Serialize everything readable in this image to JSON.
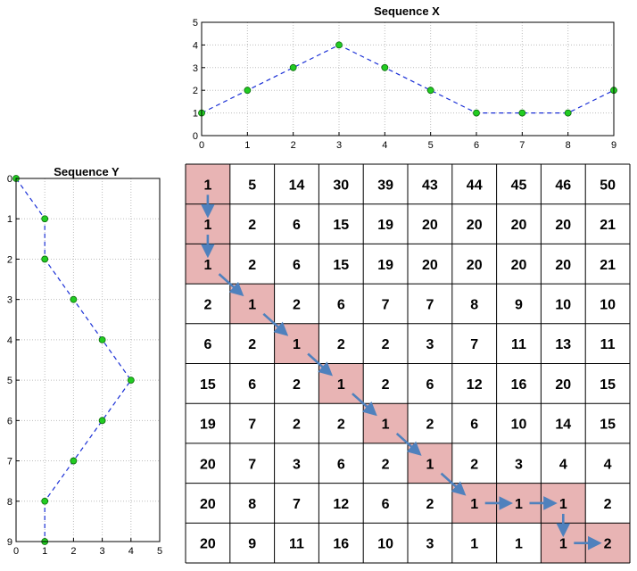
{
  "sequence_x": {
    "title": "Sequence X",
    "x_ticks": [
      "0",
      "1",
      "2",
      "3",
      "4",
      "5",
      "6",
      "7",
      "8",
      "9"
    ],
    "y_ticks": [
      "0",
      "1",
      "2",
      "3",
      "4",
      "5"
    ]
  },
  "sequence_y": {
    "title": "Sequence Y",
    "x_ticks": [
      "0",
      "1",
      "2",
      "3",
      "4",
      "5"
    ],
    "y_ticks": [
      "0",
      "1",
      "2",
      "3",
      "4",
      "5",
      "6",
      "7",
      "8",
      "9"
    ]
  },
  "colors": {
    "line": "#1a2fd6",
    "marker": "#22cc22",
    "highlight": "#e8b4b4",
    "arrow": "#4f81bd",
    "grid": "#bdbdbd"
  },
  "chart_data": [
    {
      "type": "line",
      "title": "Sequence X",
      "x": [
        0,
        1,
        2,
        3,
        4,
        5,
        6,
        7,
        8,
        9
      ],
      "values": [
        1,
        2,
        3,
        4,
        3,
        2,
        1,
        1,
        1,
        2
      ],
      "xlim": [
        0,
        9
      ],
      "ylim": [
        0,
        5
      ],
      "grid": true
    },
    {
      "type": "line",
      "title": "Sequence Y",
      "x": [
        0,
        1,
        1,
        2,
        3,
        4,
        3,
        2,
        1,
        1
      ],
      "y": [
        0,
        1,
        2,
        3,
        4,
        5,
        6,
        7,
        8,
        9
      ],
      "xlim": [
        0,
        5
      ],
      "ylim": [
        0,
        9
      ],
      "y_inverted": true,
      "grid": true
    },
    {
      "type": "table",
      "rows": [
        [
          1,
          5,
          14,
          30,
          39,
          43,
          44,
          45,
          46,
          50
        ],
        [
          1,
          2,
          6,
          15,
          19,
          20,
          20,
          20,
          20,
          21
        ],
        [
          1,
          2,
          6,
          15,
          19,
          20,
          20,
          20,
          20,
          21
        ],
        [
          2,
          1,
          2,
          6,
          7,
          7,
          8,
          9,
          10,
          10
        ],
        [
          6,
          2,
          1,
          2,
          2,
          3,
          7,
          11,
          13,
          11
        ],
        [
          15,
          6,
          2,
          1,
          2,
          6,
          12,
          16,
          20,
          15
        ],
        [
          19,
          7,
          2,
          2,
          1,
          2,
          6,
          10,
          14,
          15
        ],
        [
          20,
          7,
          3,
          6,
          2,
          1,
          2,
          3,
          4,
          4
        ],
        [
          20,
          8,
          7,
          12,
          6,
          2,
          1,
          1,
          1,
          2
        ],
        [
          20,
          9,
          11,
          16,
          10,
          3,
          1,
          1,
          1,
          2
        ]
      ],
      "warping_path": [
        [
          0,
          0
        ],
        [
          1,
          0
        ],
        [
          2,
          0
        ],
        [
          3,
          1
        ],
        [
          4,
          2
        ],
        [
          5,
          3
        ],
        [
          6,
          4
        ],
        [
          7,
          5
        ],
        [
          8,
          6
        ],
        [
          8,
          7
        ],
        [
          8,
          8
        ],
        [
          9,
          8
        ],
        [
          9,
          9
        ]
      ]
    }
  ]
}
